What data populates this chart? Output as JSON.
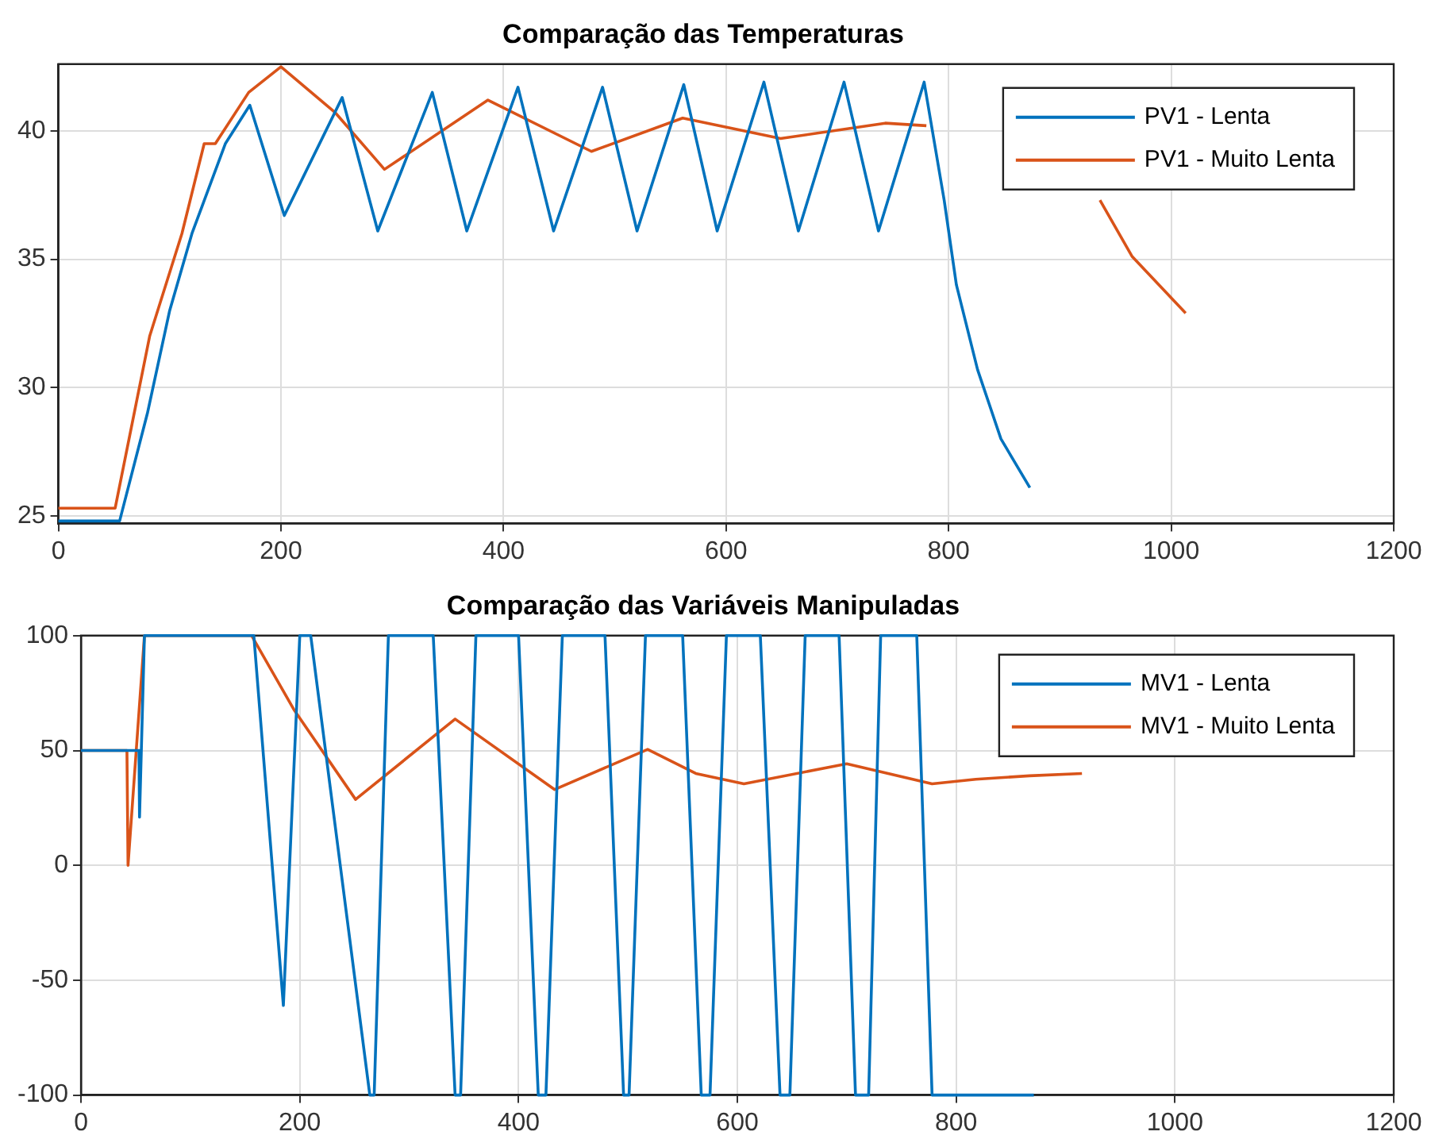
{
  "chart_data": [
    {
      "type": "line",
      "title": "Comparação das Temperaturas",
      "xlim": [
        0,
        1200
      ],
      "xticks": [
        0,
        200,
        400,
        600,
        800,
        1000,
        1200
      ],
      "ylim": [
        24.7,
        42.6
      ],
      "yticks": [
        25,
        30,
        35,
        40
      ],
      "grid": true,
      "legend": "top right",
      "marker": "none",
      "line_style": "solid",
      "series": [
        {
          "name": "PV1 - Lenta",
          "color": "#0072bd",
          "x": [
            0,
            55,
            80,
            100,
            120,
            150,
            172,
            203,
            255,
            287,
            336,
            367,
            413,
            445,
            489,
            520,
            562,
            592,
            634,
            665,
            706,
            737,
            778,
            796,
            807,
            826,
            847,
            873
          ],
          "values": [
            24.8,
            24.8,
            29,
            33,
            36,
            39.5,
            41,
            36.7,
            41.3,
            36.1,
            41.5,
            36.1,
            41.7,
            36.1,
            41.7,
            36.1,
            41.8,
            36.1,
            41.9,
            36.1,
            41.9,
            36.1,
            41.9,
            37.3,
            34,
            30.7,
            28,
            26.1
          ]
        },
        {
          "name": "PV1 - Muito Lenta",
          "color": "#d95319",
          "x": [
            0,
            51,
            82,
            111,
            131,
            141,
            171,
            200,
            249,
            293,
            386,
            479,
            561,
            649,
            743,
            780,
            850,
            936,
            965,
            1013
          ],
          "values": [
            25.3,
            25.3,
            32,
            36,
            39.5,
            39.5,
            41.5,
            42.5,
            40.7,
            38.5,
            41.2,
            39.2,
            40.5,
            39.7,
            40.3,
            40.2,
            null,
            37.3,
            35.1,
            32.9
          ]
        }
      ]
    },
    {
      "type": "line",
      "title": "Comparação das Variáveis Manipuladas",
      "xlim": [
        0,
        1200
      ],
      "xticks": [
        0,
        200,
        400,
        600,
        800,
        1000,
        1200
      ],
      "ylim": [
        -100,
        100
      ],
      "yticks": [
        -100,
        -50,
        0,
        50,
        100
      ],
      "grid": true,
      "legend": "top right",
      "marker": "none",
      "line_style": "solid",
      "series": [
        {
          "name": "MV1 - Lenta",
          "color": "#0072bd",
          "x": [
            0,
            53,
            53.5,
            58,
            158,
            185,
            200,
            210,
            264,
            268,
            281,
            322,
            342,
            347,
            361,
            400,
            418,
            425,
            440,
            479,
            496,
            501,
            516,
            550,
            567,
            575,
            590,
            621,
            639,
            648,
            662,
            693,
            708,
            720,
            731,
            764,
            778,
            871
          ],
          "values": [
            50,
            50,
            21,
            100,
            100,
            -61,
            100,
            100,
            -100,
            -100,
            100,
            100,
            -100,
            -100,
            100,
            100,
            -100,
            -100,
            100,
            100,
            -100,
            -100,
            100,
            100,
            -100,
            -100,
            100,
            100,
            -100,
            -100,
            100,
            100,
            -100,
            -100,
            100,
            100,
            -100,
            -100
          ]
        },
        {
          "name": "MV1 - Muito Lenta",
          "color": "#d95319",
          "x": [
            0,
            42,
            43,
            58,
            156,
            195,
            251,
            342,
            433,
            518,
            562,
            606,
            700,
            778,
            818,
            867,
            915
          ],
          "values": [
            50,
            50,
            0,
            100,
            100,
            67.5,
            28.7,
            63.7,
            33,
            50.5,
            40,
            35.5,
            44.2,
            35.5,
            37.5,
            39,
            40
          ]
        }
      ]
    }
  ]
}
